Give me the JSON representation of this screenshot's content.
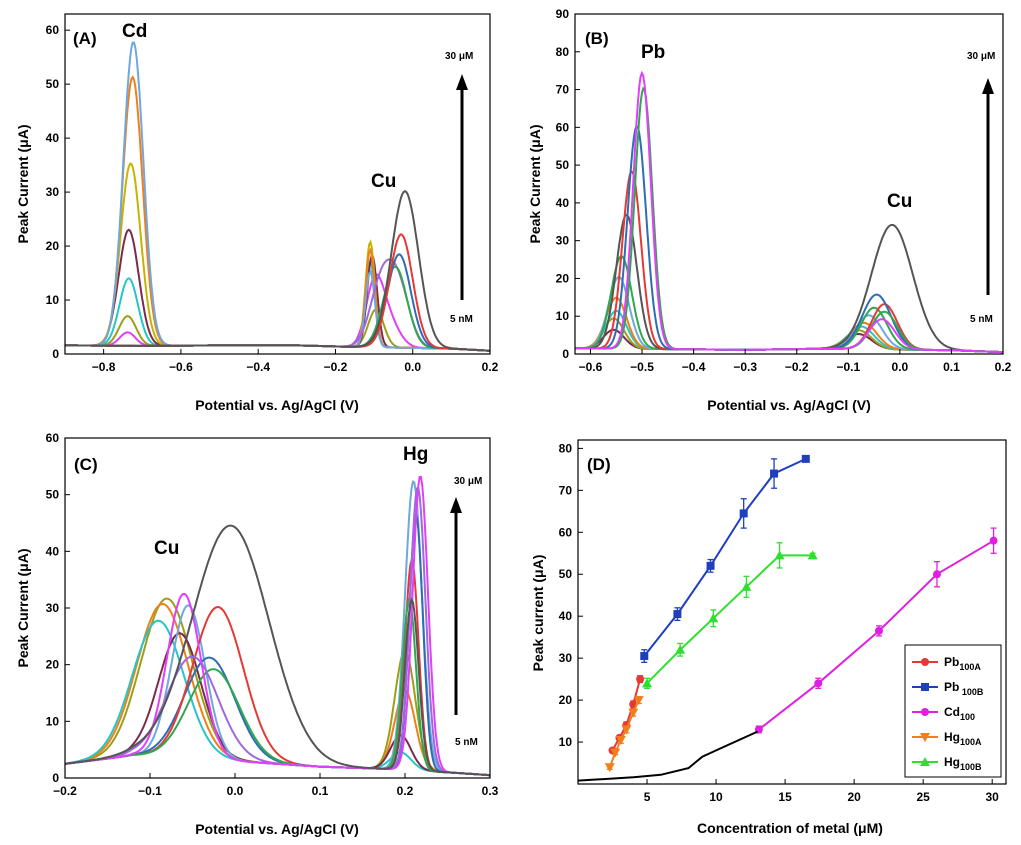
{
  "chart_data": [
    {
      "panel": "(A)",
      "type": "line",
      "xlabel": "Potential vs. Ag/AgCl (V)",
      "ylabel": "Peak Current (μA)",
      "xlim": [
        -0.9,
        0.2
      ],
      "ylim": [
        0,
        63
      ],
      "xticks": [
        -0.8,
        -0.6,
        -0.4,
        -0.2,
        0.0,
        0.2
      ],
      "xtick_labels": [
        "−0.8",
        "−0.6",
        "−0.4",
        "−0.2",
        "0.0",
        "0.2"
      ],
      "yticks": [
        0,
        10,
        20,
        30,
        40,
        50,
        60
      ],
      "ytick_labels": [
        "0",
        "10",
        "20",
        "30",
        "40",
        "50",
        "60"
      ],
      "peak_labels": [
        {
          "text": "Cd",
          "x": -0.73,
          "y": 61
        },
        {
          "text": "Cu",
          "x": -0.07,
          "y": 32
        }
      ],
      "arrow": {
        "top": "30 μM",
        "bottom": "5 nM"
      },
      "baseline": [
        [
          -0.9,
          1.6
        ],
        [
          -0.7,
          1.5
        ],
        [
          -0.5,
          1.6
        ],
        [
          -0.3,
          1.6
        ],
        [
          -0.2,
          1.4
        ],
        [
          0.1,
          1.0
        ],
        [
          0.2,
          0.6
        ]
      ],
      "series": [
        {
          "color": "#e040fb",
          "peaks": [
            {
              "c": -0.738,
              "h": 2.5,
              "w": 0.02
            },
            {
              "c": -0.1,
              "h": 9.5,
              "w": 0.022
            },
            {
              "c": -0.07,
              "h": 6,
              "w": 0.03
            }
          ]
        },
        {
          "color": "#9e9e1a",
          "peaks": [
            {
              "c": -0.738,
              "h": 5.5,
              "w": 0.022
            },
            {
              "c": -0.095,
              "h": 7,
              "w": 0.02
            }
          ]
        },
        {
          "color": "#26c6c6",
          "peaks": [
            {
              "c": -0.735,
              "h": 12.5,
              "w": 0.024
            },
            {
              "c": -0.11,
              "h": 16,
              "w": 0.012
            }
          ]
        },
        {
          "color": "#7b2c4e",
          "peaks": [
            {
              "c": -0.735,
              "h": 21.5,
              "w": 0.026
            },
            {
              "c": -0.105,
              "h": 17,
              "w": 0.013
            }
          ]
        },
        {
          "color": "#c6b400",
          "peaks": [
            {
              "c": -0.73,
              "h": 33.8,
              "w": 0.026
            },
            {
              "c": -0.11,
              "h": 19.5,
              "w": 0.012
            }
          ]
        },
        {
          "color": "#f07f1a",
          "peaks": [
            {
              "c": -0.725,
              "h": 49.8,
              "w": 0.026
            },
            {
              "c": -0.11,
              "h": 18,
              "w": 0.012
            }
          ]
        },
        {
          "color": "#6fa8dc",
          "peaks": [
            {
              "c": -0.723,
              "h": 56.3,
              "w": 0.026
            },
            {
              "c": -0.11,
              "h": 14,
              "w": 0.012
            }
          ]
        },
        {
          "color": "#9c6ade",
          "peaks": [
            {
              "c": -0.085,
              "h": 10,
              "w": 0.028
            },
            {
              "c": -0.04,
              "h": 12,
              "w": 0.03
            }
          ]
        },
        {
          "color": "#2fa84f",
          "peaks": [
            {
              "c": -0.045,
              "h": 15,
              "w": 0.03
            }
          ]
        },
        {
          "color": "#2d6db5",
          "peaks": [
            {
              "c": -0.035,
              "h": 17.3,
              "w": 0.03
            }
          ]
        },
        {
          "color": "#e53935",
          "peaks": [
            {
              "c": -0.03,
              "h": 21,
              "w": 0.03
            }
          ]
        },
        {
          "color": "#555555",
          "peaks": [
            {
              "c": -0.02,
              "h": 29,
              "w": 0.035
            }
          ]
        }
      ]
    },
    {
      "panel": "(B)",
      "type": "line",
      "xlabel": "Potential vs. Ag/AgCl (V)",
      "ylabel": "Peak Current (μA)",
      "xlim": [
        -0.63,
        0.2
      ],
      "ylim": [
        0,
        90
      ],
      "xticks": [
        -0.6,
        -0.5,
        -0.4,
        -0.3,
        -0.2,
        -0.1,
        0.0,
        0.1,
        0.2
      ],
      "xtick_labels": [
        "−0.6",
        "−0.5",
        "−0.4",
        "−0.3",
        "−0.2",
        "−0.1",
        "0.0",
        "0.1",
        "0.2"
      ],
      "yticks": [
        0,
        10,
        20,
        30,
        40,
        50,
        60,
        70,
        80,
        90
      ],
      "ytick_labels": [
        "0",
        "10",
        "20",
        "30",
        "40",
        "50",
        "60",
        "70",
        "80",
        "90"
      ],
      "peak_labels": [
        {
          "text": "Pb",
          "x": -0.52,
          "y": 84
        },
        {
          "text": "Cu",
          "x": -0.02,
          "y": 42
        }
      ],
      "arrow": {
        "top": "30 μM",
        "bottom": "5 nM"
      },
      "baseline": [
        [
          -0.63,
          1.5
        ],
        [
          -0.45,
          1.3
        ],
        [
          -0.3,
          1.1
        ],
        [
          -0.15,
          1.4
        ],
        [
          0.1,
          1.0
        ],
        [
          0.2,
          0.5
        ]
      ],
      "series": [
        {
          "color": "#7b2c4e",
          "peaks": [
            {
              "c": -0.555,
              "h": 5,
              "w": 0.02
            },
            {
              "c": -0.08,
              "h": 4,
              "w": 0.025
            }
          ]
        },
        {
          "color": "#9e9e1a",
          "peaks": [
            {
              "c": -0.555,
              "h": 8,
              "w": 0.02
            },
            {
              "c": -0.08,
              "h": 5,
              "w": 0.025
            }
          ]
        },
        {
          "color": "#26c6c6",
          "peaks": [
            {
              "c": -0.55,
              "h": 10,
              "w": 0.02
            },
            {
              "c": -0.075,
              "h": 6,
              "w": 0.025
            }
          ]
        },
        {
          "color": "#f07f1a",
          "peaks": [
            {
              "c": -0.55,
              "h": 13.5,
              "w": 0.02
            },
            {
              "c": -0.07,
              "h": 7,
              "w": 0.025
            }
          ]
        },
        {
          "color": "#6fa8dc",
          "peaks": [
            {
              "c": -0.545,
              "h": 19,
              "w": 0.02
            },
            {
              "c": -0.06,
              "h": 9,
              "w": 0.025
            }
          ]
        },
        {
          "color": "#2fa84f",
          "peaks": [
            {
              "c": -0.54,
              "h": 24.5,
              "w": 0.02
            },
            {
              "c": -0.05,
              "h": 11,
              "w": 0.025
            }
          ]
        },
        {
          "color": "#555555",
          "peaks": [
            {
              "c": -0.53,
              "h": 35.5,
              "w": 0.02
            },
            {
              "c": -0.015,
              "h": 33,
              "w": 0.04
            }
          ]
        },
        {
          "color": "#e53935",
          "peaks": [
            {
              "c": -0.52,
              "h": 47,
              "w": 0.018
            },
            {
              "c": -0.03,
              "h": 12,
              "w": 0.025
            }
          ]
        },
        {
          "color": "#2d6db5",
          "peaks": [
            {
              "c": -0.51,
              "h": 59,
              "w": 0.018
            },
            {
              "c": -0.045,
              "h": 14.5,
              "w": 0.028
            }
          ]
        },
        {
          "color": "#2fa84f",
          "peaks": [
            {
              "c": -0.497,
              "h": 69,
              "w": 0.017
            },
            {
              "c": -0.03,
              "h": 10,
              "w": 0.025
            }
          ]
        },
        {
          "color": "#e040fb",
          "peaks": [
            {
              "c": -0.5,
              "h": 73,
              "w": 0.017
            },
            {
              "c": -0.035,
              "h": 8,
              "w": 0.025
            }
          ]
        }
      ]
    },
    {
      "panel": "(C)",
      "type": "line",
      "xlabel": "Potential vs. Ag/AgCl (V)",
      "ylabel": "Peak Current (μA)",
      "xlim": [
        -0.2,
        0.3
      ],
      "ylim": [
        0,
        60
      ],
      "xticks": [
        -0.2,
        -0.1,
        0.0,
        0.1,
        0.2,
        0.3
      ],
      "xtick_labels": [
        "−0.2",
        "−0.1",
        "0.0",
        "0.1",
        "0.2",
        "0.3"
      ],
      "yticks": [
        0,
        10,
        20,
        30,
        40,
        50,
        60
      ],
      "ytick_labels": [
        "0",
        "10",
        "20",
        "30",
        "40",
        "50",
        "60"
      ],
      "peak_labels": [
        {
          "text": "Hg",
          "x": 0.21,
          "y": 56
        },
        {
          "text": "Cu",
          "x": -0.07,
          "y": 40
        }
      ],
      "arrow": {
        "top": "30 μM",
        "bottom": "5 nM"
      },
      "baseline": [
        [
          -0.2,
          2.5
        ],
        [
          -0.12,
          4.0
        ],
        [
          0.0,
          3.0
        ],
        [
          0.1,
          2.0
        ],
        [
          0.2,
          1.5
        ],
        [
          0.3,
          0.5
        ]
      ],
      "series": [
        {
          "color": "#9e9e1a",
          "peaks": [
            {
              "c": -0.08,
              "h": 28,
              "w": 0.03
            },
            {
              "c": 0.2,
              "h": 21,
              "w": 0.012
            }
          ]
        },
        {
          "color": "#f07f1a",
          "peaks": [
            {
              "c": -0.085,
              "h": 27,
              "w": 0.03
            },
            {
              "c": 0.2,
              "h": 14,
              "w": 0.012
            }
          ]
        },
        {
          "color": "#26c6c6",
          "peaks": [
            {
              "c": -0.09,
              "h": 24,
              "w": 0.03
            },
            {
              "c": 0.195,
              "h": 3,
              "w": 0.012
            }
          ]
        },
        {
          "color": "#7b2c4e",
          "peaks": [
            {
              "c": -0.065,
              "h": 22,
              "w": 0.025
            },
            {
              "c": 0.195,
              "h": 6,
              "w": 0.012
            }
          ]
        },
        {
          "color": "#6fa8dc",
          "peaks": [
            {
              "c": -0.055,
              "h": 27,
              "w": 0.02
            },
            {
              "c": 0.21,
              "h": 51,
              "w": 0.01
            }
          ]
        },
        {
          "color": "#2d6db5",
          "peaks": [
            {
              "c": -0.03,
              "h": 18,
              "w": 0.03
            },
            {
              "c": 0.213,
              "h": 45,
              "w": 0.008
            }
          ]
        },
        {
          "color": "#e53935",
          "peaks": [
            {
              "c": -0.02,
              "h": 27,
              "w": 0.03
            },
            {
              "c": 0.208,
              "h": 37,
              "w": 0.008
            }
          ]
        },
        {
          "color": "#2fa84f",
          "peaks": [
            {
              "c": -0.025,
              "h": 16,
              "w": 0.03
            },
            {
              "c": 0.205,
              "h": 30,
              "w": 0.008
            }
          ]
        },
        {
          "color": "#9c6ade",
          "peaks": [
            {
              "c": -0.05,
              "h": 18,
              "w": 0.03
            },
            {
              "c": 0.215,
              "h": 50,
              "w": 0.009
            }
          ]
        },
        {
          "color": "#e040fb",
          "peaks": [
            {
              "c": -0.06,
              "h": 29,
              "w": 0.02
            },
            {
              "c": 0.218,
              "h": 52,
              "w": 0.009
            }
          ]
        },
        {
          "color": "#555555",
          "peaks": [
            {
              "c": -0.005,
              "h": 41.5,
              "w": 0.045
            },
            {
              "c": 0.208,
              "h": 30,
              "w": 0.008
            }
          ]
        }
      ]
    },
    {
      "panel": "(D)",
      "type": "line",
      "xlabel": "Concentration of metal (μM)",
      "ylabel": "Peak current (μA)",
      "xlim": [
        0,
        31
      ],
      "ylim": [
        0,
        82
      ],
      "xticks": [
        5,
        10,
        15,
        20,
        25,
        30
      ],
      "xtick_labels": [
        "5",
        "10",
        "15",
        "20",
        "25",
        "30"
      ],
      "yticks": [
        10,
        20,
        30,
        40,
        50,
        60,
        70,
        80
      ],
      "ytick_labels": [
        "10",
        "20",
        "30",
        "40",
        "50",
        "60",
        "70",
        "80"
      ],
      "legend_position": "bottom-right",
      "series": [
        {
          "name": "Pb",
          "sub": "100A",
          "color": "#e53935",
          "marker": "circle",
          "x": [
            2.5,
            3.0,
            3.5,
            4.0,
            4.5
          ],
          "y": [
            8,
            11,
            14,
            19,
            25
          ],
          "err": [
            0.5,
            0.5,
            0.8,
            0.8,
            0.8
          ]
        },
        {
          "name": "Pb",
          "sub": " 100B",
          "color": "#1f3fbf",
          "marker": "square",
          "x": [
            4.8,
            7.2,
            9.6,
            12.0,
            14.2,
            16.5
          ],
          "y": [
            30.5,
            40.5,
            52.0,
            64.5,
            74.0,
            77.5
          ],
          "err": [
            1.5,
            1.5,
            1.5,
            3.5,
            3.5,
            0.5
          ]
        },
        {
          "name": "Cd",
          "sub": "100",
          "color": "#e020e0",
          "marker": "circle",
          "x": [
            13.1,
            17.4,
            21.8,
            26.0,
            30.1
          ],
          "y": [
            13.0,
            24.0,
            36.5,
            50.0,
            58.0
          ],
          "err": [
            0.8,
            1.2,
            1.2,
            3.0,
            3.0
          ]
        },
        {
          "name": "Hg",
          "sub": "100A",
          "color": "#f07f1a",
          "marker": "triangle-down",
          "x": [
            2.3,
            2.7,
            3.1,
            3.5,
            4.0,
            4.4
          ],
          "y": [
            4.0,
            7.5,
            10.5,
            13.0,
            17.0,
            20.0
          ],
          "err": [
            0.5,
            0.5,
            0.8,
            0.8,
            0.8,
            0.8
          ]
        },
        {
          "name": "Hg",
          "sub": "100B",
          "color": "#2ee02e",
          "marker": "triangle-up",
          "x": [
            5.0,
            7.4,
            9.8,
            12.2,
            14.6,
            17.0
          ],
          "y": [
            24.0,
            32.0,
            39.5,
            47.0,
            54.5,
            54.5
          ],
          "err": [
            1.2,
            1.5,
            2.0,
            2.5,
            3.0,
            0.5
          ]
        },
        {
          "name": "",
          "sub": "",
          "color": "#000000",
          "marker": "none",
          "x": [
            0,
            1,
            2,
            3,
            4,
            6,
            8,
            9,
            10,
            11,
            12,
            13
          ],
          "y": [
            0.8,
            1.0,
            1.2,
            1.4,
            1.6,
            2.2,
            3.8,
            6.5,
            8.0,
            9.5,
            11.0,
            12.5
          ],
          "err": []
        }
      ]
    }
  ]
}
